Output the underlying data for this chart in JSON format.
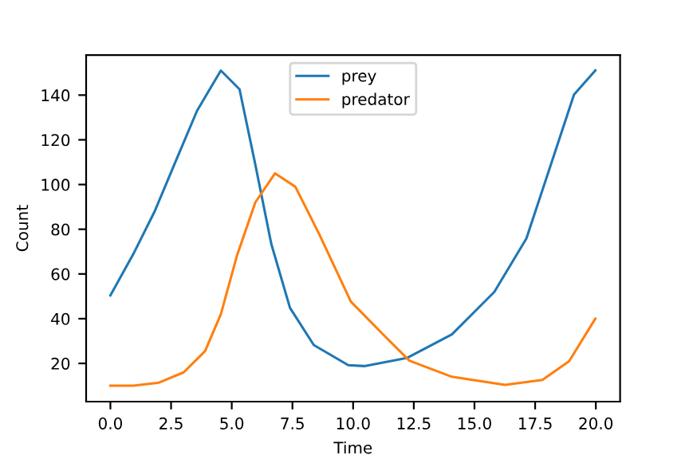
{
  "chart_data": {
    "type": "line",
    "xlabel": "Time",
    "ylabel": "Count",
    "xlim": [
      -1,
      21
    ],
    "ylim": [
      2.9,
      157.9
    ],
    "xticks": [
      {
        "value": 0,
        "label": "0.0"
      },
      {
        "value": 2.5,
        "label": "2.5"
      },
      {
        "value": 5,
        "label": "5.0"
      },
      {
        "value": 7.5,
        "label": "7.5"
      },
      {
        "value": 10,
        "label": "10.0"
      },
      {
        "value": 12.5,
        "label": "12.5"
      },
      {
        "value": 15,
        "label": "15.0"
      },
      {
        "value": 17.5,
        "label": "17.5"
      },
      {
        "value": 20,
        "label": "20.0"
      }
    ],
    "yticks": [
      20,
      40,
      60,
      80,
      100,
      120,
      140
    ],
    "legend": "top",
    "grid": false,
    "series": [
      {
        "name": "prey",
        "color": "#1f77b4",
        "x": [
          0,
          0.94,
          1.82,
          2.69,
          3.57,
          4.55,
          5.32,
          5.97,
          6.63,
          7.4,
          8.38,
          9.8,
          10.46,
          12.21,
          14.07,
          15.82,
          17.14,
          18.23,
          19.1,
          19.98
        ],
        "values": [
          50.4,
          68.8,
          87.9,
          110.4,
          133,
          151,
          142.6,
          109,
          73.4,
          44.8,
          28.2,
          19.2,
          18.8,
          22.4,
          33,
          52,
          75.9,
          111.6,
          140.2,
          151
        ]
      },
      {
        "name": "predator",
        "color": "#ff7f0e",
        "x": [
          0,
          0.94,
          2.0,
          3.02,
          3.9,
          4.55,
          5.21,
          5.97,
          6.78,
          7.62,
          8.6,
          9.91,
          11.23,
          12.32,
          14.07,
          16.26,
          17.8,
          18.9,
          19.98
        ],
        "values": [
          10,
          10,
          11.4,
          16,
          25.5,
          42,
          68,
          92,
          105,
          99,
          77.9,
          47.6,
          33,
          21.2,
          14,
          10.4,
          12.6,
          21,
          40
        ]
      }
    ]
  }
}
